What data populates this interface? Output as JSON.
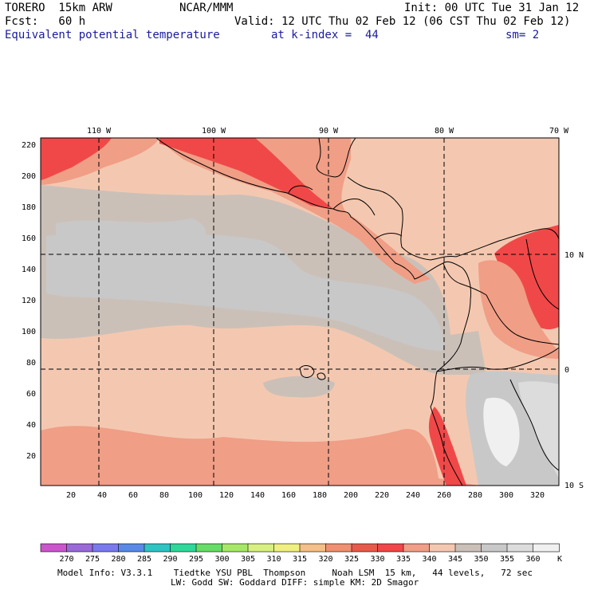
{
  "header": {
    "model": "TORERO  15km ARW",
    "org": "NCAR/MMM",
    "init": "Init: 00 UTC Tue 31 Jan 12",
    "fcst": "Fcst:   60 h",
    "valid": "Valid: 12 UTC Thu 02 Feb 12 (06 CST Thu 02 Feb 12)",
    "field": "Equivalent potential temperature",
    "level": "at k-index =  44",
    "smooth": "sm= 2"
  },
  "map": {
    "lon_labels": [
      "110 W",
      "100 W",
      "90 W",
      "80 W",
      "70 W"
    ],
    "lat_labels": [
      "10 N",
      "0",
      "10 S"
    ],
    "y_grid_labels": [
      "220",
      "200",
      "180",
      "160",
      "140",
      "120",
      "100",
      "80",
      "60",
      "40",
      "20"
    ],
    "x_grid_labels": [
      "20",
      "40",
      "60",
      "80",
      "100",
      "120",
      "140",
      "160",
      "180",
      "200",
      "220",
      "240",
      "260",
      "280",
      "300",
      "320"
    ]
  },
  "colorbar": {
    "unit": "K",
    "labels": [
      "270",
      "275",
      "280",
      "285",
      "290",
      "295",
      "300",
      "305",
      "310",
      "315",
      "320",
      "325",
      "330",
      "335",
      "340",
      "345",
      "350",
      "355",
      "360"
    ],
    "colors": [
      "#cc55cc",
      "#9a6ad8",
      "#7a7aee",
      "#5a8ae8",
      "#2ec4c4",
      "#2ed89a",
      "#66dd66",
      "#a6e866",
      "#d8f080",
      "#f0f080",
      "#f4c088",
      "#f09070",
      "#e85a4a",
      "#f04848",
      "#f09e86",
      "#f4c8b0",
      "#cbc0b8",
      "#c8c8c8",
      "#dcdcdc",
      "#f0f0f0"
    ]
  },
  "footer": {
    "line1": "Model Info: V3.3.1    Tiedtke YSU PBL  Thompson     Noah LSM  15 km,   44 levels,   72 sec",
    "line2": "LW: Godd SW: Goddard DIFF: simple KM: 2D Smagor"
  }
}
